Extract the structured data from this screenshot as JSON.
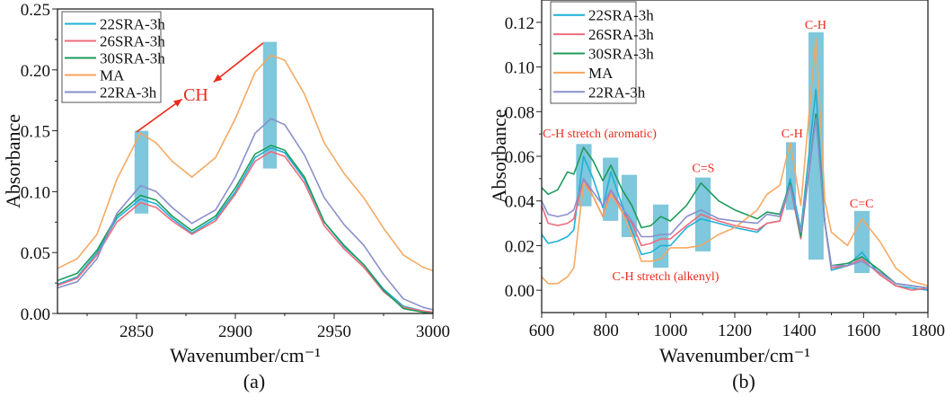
{
  "chart_data": [
    {
      "type": "line",
      "panel_label": "(a)",
      "xlabel": "Wavenumber/cm⁻¹",
      "ylabel": "Absorbance",
      "xlim": [
        2810,
        3000
      ],
      "ylim": [
        0,
        0.25
      ],
      "xticks": [
        2850,
        2900,
        2950,
        3000
      ],
      "xtick_labels": [
        "2850",
        "2900",
        "2950",
        "3000"
      ],
      "yticks": [
        0,
        0.05,
        0.1,
        0.15,
        0.2,
        0.25
      ],
      "ytick_labels": [
        "0.00",
        "0.05",
        "0.10",
        "0.15",
        "0.20",
        "0.25"
      ],
      "legend_position": "top-left",
      "x": [
        2810,
        2820,
        2830,
        2840,
        2852,
        2860,
        2868,
        2878,
        2890,
        2900,
        2910,
        2918,
        2925,
        2935,
        2945,
        2955,
        2965,
        2975,
        2985,
        2995,
        3000
      ],
      "series": [
        {
          "name": "22SRA-3h",
          "color": "#1fb0d6",
          "values": [
            0.024,
            0.03,
            0.05,
            0.078,
            0.094,
            0.09,
            0.078,
            0.066,
            0.078,
            0.1,
            0.128,
            0.136,
            0.132,
            0.11,
            0.075,
            0.055,
            0.04,
            0.02,
            0.006,
            0.002,
            0.001
          ]
        },
        {
          "name": "26SRA-3h",
          "color": "#ef6b7b",
          "values": [
            0.023,
            0.029,
            0.048,
            0.075,
            0.091,
            0.087,
            0.076,
            0.065,
            0.076,
            0.098,
            0.125,
            0.133,
            0.129,
            0.107,
            0.072,
            0.053,
            0.038,
            0.018,
            0.005,
            0.002,
            0.001
          ]
        },
        {
          "name": "30SRA-3h",
          "color": "#1e9b5c",
          "values": [
            0.027,
            0.033,
            0.052,
            0.08,
            0.097,
            0.093,
            0.08,
            0.068,
            0.08,
            0.103,
            0.131,
            0.138,
            0.134,
            0.112,
            0.075,
            0.056,
            0.04,
            0.019,
            0.004,
            0.001,
            0.0
          ]
        },
        {
          "name": "MA",
          "color": "#f4a55c",
          "values": [
            0.037,
            0.045,
            0.065,
            0.11,
            0.148,
            0.14,
            0.125,
            0.112,
            0.128,
            0.16,
            0.198,
            0.212,
            0.208,
            0.18,
            0.14,
            0.115,
            0.095,
            0.07,
            0.048,
            0.038,
            0.035
          ]
        },
        {
          "name": "22RA-3h",
          "color": "#8a8fcc",
          "values": [
            0.021,
            0.026,
            0.045,
            0.082,
            0.105,
            0.1,
            0.087,
            0.074,
            0.085,
            0.112,
            0.148,
            0.16,
            0.155,
            0.13,
            0.095,
            0.073,
            0.056,
            0.032,
            0.012,
            0.005,
            0.003
          ]
        }
      ],
      "bands": [
        {
          "x": [
            2849,
            2856
          ],
          "y": [
            0.082,
            0.15
          ]
        },
        {
          "x": [
            2914,
            2921
          ],
          "y": [
            0.119,
            0.223
          ]
        }
      ],
      "annotations": [
        {
          "text": "CH",
          "x": 2880,
          "y": 0.18
        }
      ],
      "arrows": [
        {
          "from": [
            2850,
            0.149
          ],
          "to": [
            2873,
            0.176
          ]
        },
        {
          "from": [
            2914,
            0.222
          ],
          "to": [
            2889,
            0.19
          ]
        }
      ],
      "band_color": "#7ec7dc",
      "annotation_color": "#ee2a1c"
    },
    {
      "type": "line",
      "panel_label": "(b)",
      "xlabel": "Wavenumber/cm⁻¹",
      "ylabel": "Absorbance",
      "xlim": [
        600,
        1800
      ],
      "ylim": [
        -0.01,
        0.13
      ],
      "xticks": [
        600,
        800,
        1000,
        1200,
        1400,
        1600,
        1800
      ],
      "xtick_labels": [
        "600",
        "800",
        "1000",
        "1200",
        "1400",
        "1600",
        "1800"
      ],
      "yticks": [
        0,
        0.02,
        0.04,
        0.06,
        0.08,
        0.1,
        0.12
      ],
      "ytick_labels": [
        "0.00",
        "0.02",
        "0.04",
        "0.06",
        "0.08",
        "0.10",
        "0.12"
      ],
      "legend_position": "top-left",
      "x": [
        600,
        620,
        650,
        680,
        700,
        730,
        760,
        790,
        815,
        850,
        880,
        910,
        940,
        970,
        1000,
        1050,
        1095,
        1150,
        1200,
        1270,
        1300,
        1340,
        1372,
        1405,
        1452,
        1480,
        1500,
        1550,
        1595,
        1650,
        1700,
        1750,
        1800
      ],
      "series": [
        {
          "name": "22SRA-3h",
          "color": "#1fb0d6",
          "values": [
            0.025,
            0.021,
            0.022,
            0.024,
            0.027,
            0.06,
            0.05,
            0.037,
            0.053,
            0.038,
            0.027,
            0.016,
            0.017,
            0.02,
            0.02,
            0.028,
            0.032,
            0.03,
            0.028,
            0.026,
            0.03,
            0.031,
            0.05,
            0.027,
            0.09,
            0.03,
            0.009,
            0.011,
            0.017,
            0.007,
            0.002,
            0.001,
            0.0
          ]
        },
        {
          "name": "26SRA-3h",
          "color": "#ef6b7b",
          "values": [
            0.038,
            0.03,
            0.029,
            0.03,
            0.032,
            0.05,
            0.042,
            0.033,
            0.045,
            0.035,
            0.03,
            0.02,
            0.021,
            0.023,
            0.023,
            0.029,
            0.034,
            0.031,
            0.029,
            0.027,
            0.03,
            0.031,
            0.047,
            0.023,
            0.078,
            0.03,
            0.01,
            0.011,
            0.014,
            0.007,
            0.002,
            0.0,
            0.001
          ]
        },
        {
          "name": "30SRA-3h",
          "color": "#1e9b5c",
          "values": [
            0.046,
            0.043,
            0.045,
            0.053,
            0.052,
            0.064,
            0.058,
            0.049,
            0.056,
            0.045,
            0.038,
            0.028,
            0.029,
            0.033,
            0.031,
            0.038,
            0.048,
            0.04,
            0.036,
            0.032,
            0.035,
            0.034,
            0.048,
            0.024,
            0.079,
            0.03,
            0.011,
            0.012,
            0.015,
            0.009,
            0.003,
            0.002,
            0.001
          ]
        },
        {
          "name": "MA",
          "color": "#f4a55c",
          "values": [
            0.006,
            0.003,
            0.003,
            0.006,
            0.01,
            0.048,
            0.042,
            0.033,
            0.043,
            0.035,
            0.025,
            0.013,
            0.013,
            0.014,
            0.019,
            0.019,
            0.02,
            0.025,
            0.028,
            0.036,
            0.043,
            0.047,
            0.066,
            0.038,
            0.113,
            0.04,
            0.026,
            0.02,
            0.032,
            0.022,
            0.01,
            0.004,
            0.002
          ]
        },
        {
          "name": "22RA-3h",
          "color": "#8a8fcc",
          "values": [
            0.04,
            0.034,
            0.033,
            0.034,
            0.036,
            0.05,
            0.044,
            0.038,
            0.045,
            0.037,
            0.031,
            0.024,
            0.024,
            0.025,
            0.025,
            0.033,
            0.036,
            0.032,
            0.031,
            0.03,
            0.034,
            0.033,
            0.047,
            0.026,
            0.077,
            0.03,
            0.011,
            0.011,
            0.013,
            0.008,
            0.003,
            0.002,
            0.001
          ]
        }
      ],
      "bands": [
        {
          "x": [
            707,
            755
          ],
          "y": [
            0.0376,
            0.0655
          ]
        },
        {
          "x": [
            790,
            838
          ],
          "y": [
            0.0311,
            0.0594
          ]
        },
        {
          "x": [
            848,
            896
          ],
          "y": [
            0.0238,
            0.0517
          ]
        },
        {
          "x": [
            946,
            994
          ],
          "y": [
            0.0101,
            0.0384
          ]
        },
        {
          "x": [
            1077,
            1125
          ],
          "y": [
            0.0174,
            0.0505
          ]
        },
        {
          "x": [
            1359,
            1390
          ],
          "y": [
            0.036,
            0.0663
          ]
        },
        {
          "x": [
            1429,
            1476
          ],
          "y": [
            0.0137,
            0.1155
          ]
        },
        {
          "x": [
            1571,
            1619
          ],
          "y": [
            0.0077,
            0.0355
          ]
        }
      ],
      "annotations": [
        {
          "text": "C-H stretch (aromatic)",
          "x": 780,
          "y": 0.0705
        },
        {
          "text": "C-H stretch (alkenyl)",
          "x": 985,
          "y": 0.0065
        },
        {
          "text": "C=S",
          "x": 1102,
          "y": 0.055
        },
        {
          "text": "C-H",
          "x": 1378,
          "y": 0.0705
        },
        {
          "text": "C-H",
          "x": 1451,
          "y": 0.119
        },
        {
          "text": "C=C",
          "x": 1594,
          "y": 0.039
        }
      ],
      "arrows": [],
      "band_color": "#7ec7dc",
      "annotation_color": "#ee2a1c"
    }
  ]
}
